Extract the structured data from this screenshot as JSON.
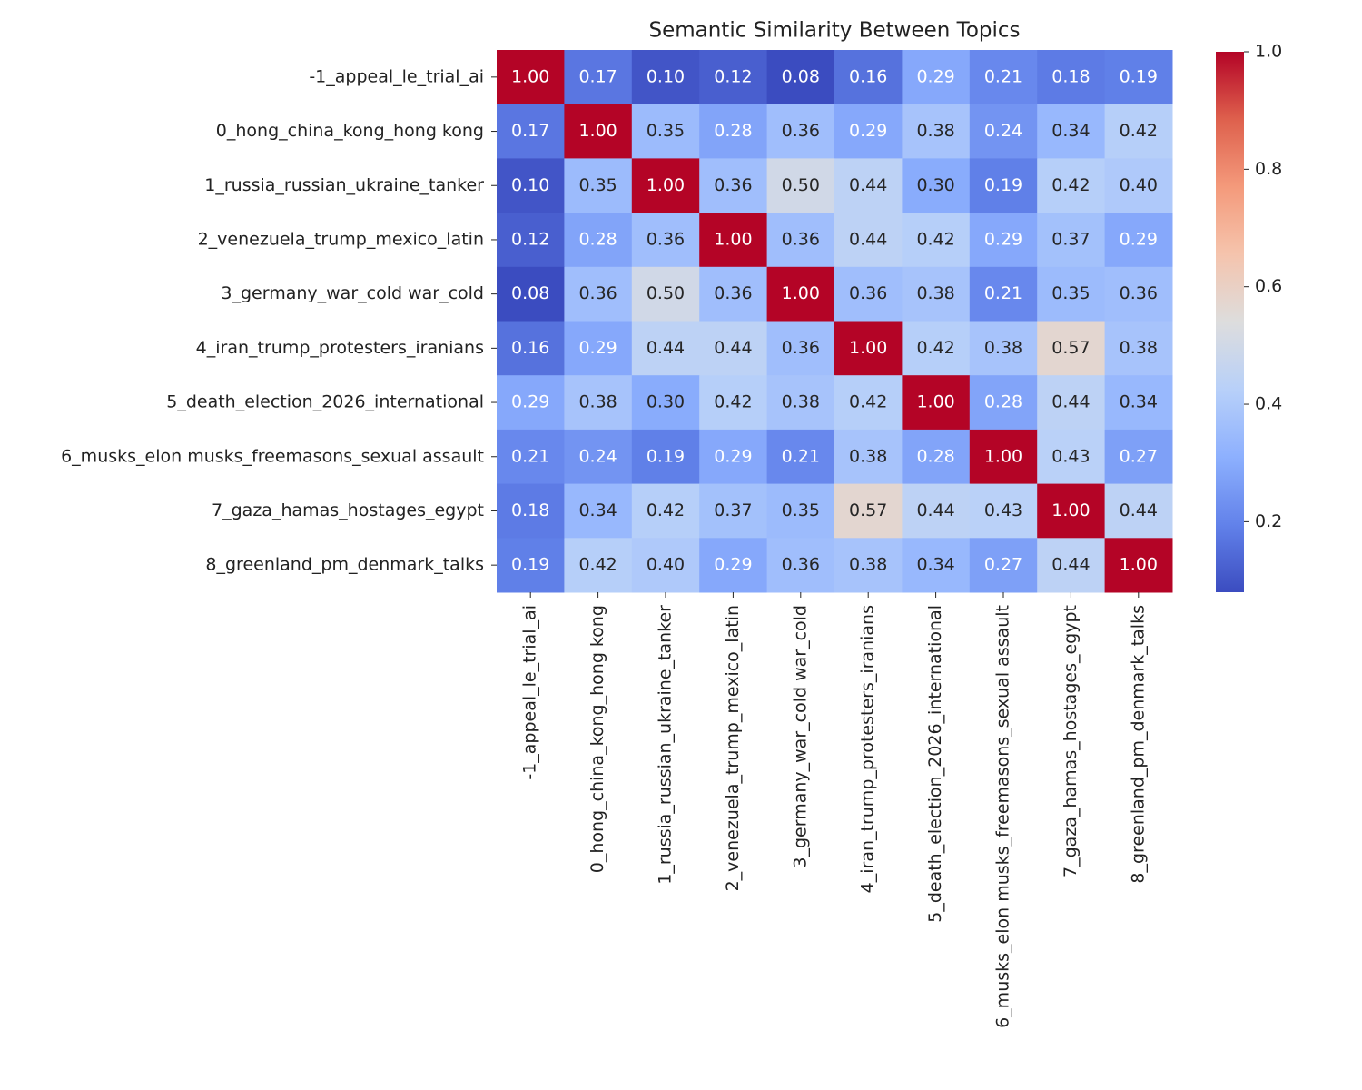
{
  "chart_data": {
    "type": "heatmap",
    "title": "Semantic Similarity Between Topics",
    "categories": [
      "-1_appeal_le_trial_ai",
      "0_hong_china_kong_hong kong",
      "1_russia_russian_ukraine_tanker",
      "2_venezuela_trump_mexico_latin",
      "3_germany_war_cold war_cold",
      "4_iran_trump_protesters_iranians",
      "5_death_election_2026_international",
      "6_musks_elon musks_freemasons_sexual assault",
      "7_gaza_hamas_hostages_egypt",
      "8_greenland_pm_denmark_talks"
    ],
    "values": [
      [
        1,
        0.17,
        0.1,
        0.12,
        0.08,
        0.16,
        0.29,
        0.21,
        0.18,
        0.19
      ],
      [
        0.17,
        1,
        0.35,
        0.28,
        0.36,
        0.29,
        0.38,
        0.24,
        0.34,
        0.42
      ],
      [
        0.1,
        0.35,
        1,
        0.36,
        0.5,
        0.44,
        0.3,
        0.19,
        0.42,
        0.4
      ],
      [
        0.12,
        0.28,
        0.36,
        1,
        0.36,
        0.44,
        0.42,
        0.29,
        0.37,
        0.29
      ],
      [
        0.08,
        0.36,
        0.5,
        0.36,
        1,
        0.36,
        0.38,
        0.21,
        0.35,
        0.36
      ],
      [
        0.16,
        0.29,
        0.44,
        0.44,
        0.36,
        1,
        0.42,
        0.38,
        0.57,
        0.38
      ],
      [
        0.29,
        0.38,
        0.3,
        0.42,
        0.38,
        0.42,
        1,
        0.28,
        0.44,
        0.34
      ],
      [
        0.21,
        0.24,
        0.19,
        0.29,
        0.21,
        0.38,
        0.28,
        1,
        0.43,
        0.27
      ],
      [
        0.18,
        0.34,
        0.42,
        0.37,
        0.35,
        0.57,
        0.44,
        0.43,
        1,
        0.44
      ],
      [
        0.19,
        0.42,
        0.4,
        0.29,
        0.36,
        0.38,
        0.34,
        0.27,
        0.44,
        1
      ]
    ],
    "value_labels": [
      [
        "1.00",
        "0.17",
        "0.10",
        "0.12",
        "0.08",
        "0.16",
        "0.29",
        "0.21",
        "0.18",
        "0.19"
      ],
      [
        "0.17",
        "1.00",
        "0.35",
        "0.28",
        "0.36",
        "0.29",
        "0.38",
        "0.24",
        "0.34",
        "0.42"
      ],
      [
        "0.10",
        "0.35",
        "1.00",
        "0.36",
        "0.50",
        "0.44",
        "0.30",
        "0.19",
        "0.42",
        "0.40"
      ],
      [
        "0.12",
        "0.28",
        "0.36",
        "1.00",
        "0.36",
        "0.44",
        "0.42",
        "0.29",
        "0.37",
        "0.29"
      ],
      [
        "0.08",
        "0.36",
        "0.50",
        "0.36",
        "1.00",
        "0.36",
        "0.38",
        "0.21",
        "0.35",
        "0.36"
      ],
      [
        "0.16",
        "0.29",
        "0.44",
        "0.44",
        "0.36",
        "1.00",
        "0.42",
        "0.38",
        "0.57",
        "0.38"
      ],
      [
        "0.29",
        "0.38",
        "0.30",
        "0.42",
        "0.38",
        "0.42",
        "1.00",
        "0.28",
        "0.44",
        "0.34"
      ],
      [
        "0.21",
        "0.24",
        "0.19",
        "0.29",
        "0.21",
        "0.38",
        "0.28",
        "1.00",
        "0.43",
        "0.27"
      ],
      [
        "0.18",
        "0.34",
        "0.42",
        "0.37",
        "0.35",
        "0.57",
        "0.44",
        "0.43",
        "1.00",
        "0.44"
      ],
      [
        "0.19",
        "0.42",
        "0.40",
        "0.29",
        "0.36",
        "0.38",
        "0.34",
        "0.27",
        "0.44",
        "1.00"
      ]
    ],
    "colormap": "coolwarm",
    "zlim": [
      0.08,
      1
    ],
    "zticks": [
      0.2,
      0.4,
      0.6,
      0.8,
      {
        "value": 1,
        "label": "1.0"
      }
    ]
  }
}
